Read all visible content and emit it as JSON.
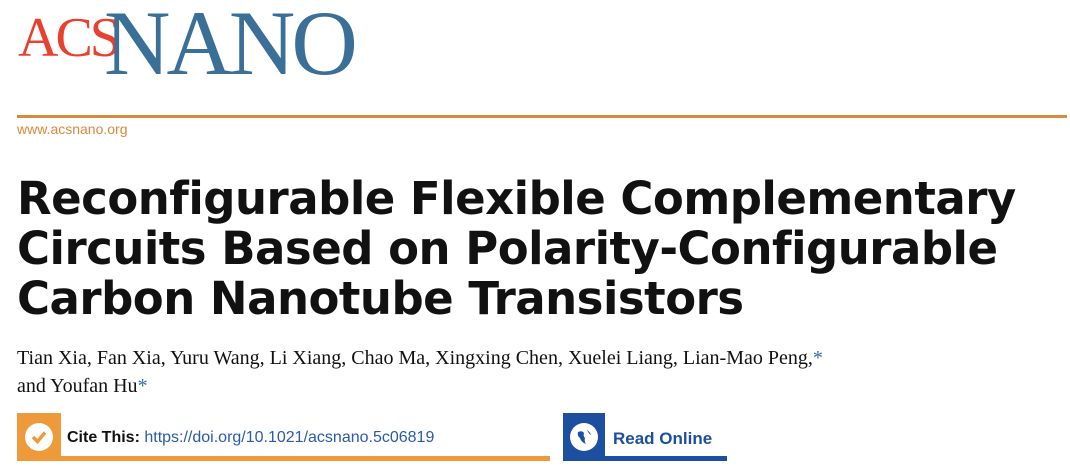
{
  "journal": {
    "logo_acs": "ACS",
    "logo_nano": "NANO",
    "url": "www.acsnano.org",
    "colors": {
      "acs_red": "#e8412f",
      "nano_blue": "#3a6f98",
      "orange": "#ef9a3a",
      "blue": "#1d4fa0"
    }
  },
  "article": {
    "title_lines": [
      "Reconfigurable Flexible Complementary",
      "Circuits Based on Polarity-Configurable",
      "Carbon Nanotube Transistors"
    ],
    "authors_line1": "Tian Xia, Fan Xia, Yuru Wang, Li Xiang, Chao Ma, Xingxing Chen, Xuelei Liang, Lian-Mao Peng,",
    "authors_line2": "and Youfan Hu",
    "corresponding_mark": "*"
  },
  "cite": {
    "label": "Cite This:",
    "doi": "https://doi.org/10.1021/acsnano.5c06819",
    "icon": "checkmark-icon"
  },
  "read_online": {
    "label": "Read Online",
    "icon": "globe-icon"
  }
}
